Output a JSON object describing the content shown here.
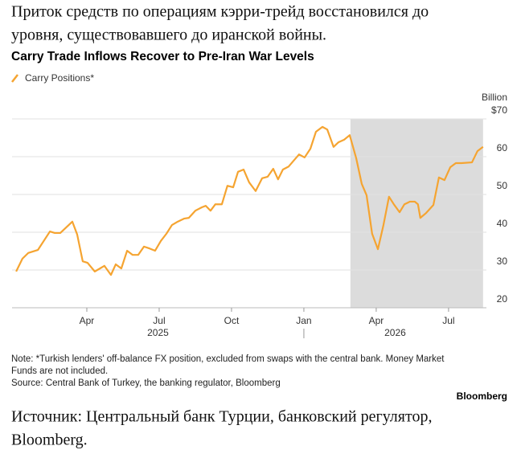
{
  "header": {
    "text_ru": [
      "Приток средств по операциям кэрри-трейд восстановился до",
      "уровня, существовавшего до иранской войны."
    ]
  },
  "chart_data": {
    "type": "line",
    "title": "Carry Trade Inflows Recover to Pre-Iran War Levels",
    "y_unit": "Billion",
    "x": [
      0.07,
      0.33,
      0.57,
      0.97,
      1.47,
      1.67,
      1.9,
      2.4,
      2.6,
      2.83,
      3.03,
      3.33,
      3.73,
      4.0,
      4.2,
      4.43,
      4.67,
      4.9,
      5.13,
      5.37,
      5.6,
      5.83,
      6.07,
      6.3,
      6.53,
      6.77,
      7.03,
      7.23,
      7.5,
      7.77,
      7.93,
      8.13,
      8.33,
      8.6,
      8.83,
      9.07,
      9.27,
      9.5,
      9.73,
      10.0,
      10.27,
      10.5,
      10.73,
      10.93,
      11.13,
      11.37,
      11.57,
      11.8,
      12.03,
      12.27,
      12.5,
      12.77,
      12.97,
      13.23,
      13.43,
      13.67,
      13.9,
      14.17,
      14.4,
      14.6,
      14.83,
      15.07,
      15.3,
      15.53,
      15.73,
      15.97,
      16.17,
      16.4,
      16.6,
      16.73,
      16.83,
      17.07,
      17.37,
      17.6,
      17.83,
      18.07,
      18.3,
      18.53,
      18.97,
      19.2,
      19.43
    ],
    "series": [
      {
        "name": "Carry Positions*",
        "color": "#f5a431",
        "values": [
          29.6,
          33,
          34.5,
          35.3,
          40.2,
          39.8,
          39.8,
          42.8,
          39.4,
          32.3,
          31.9,
          29.6,
          31.1,
          28.7,
          31.5,
          30.4,
          35.1,
          34,
          34,
          36.2,
          35.7,
          35.1,
          37.7,
          39.6,
          41.9,
          42.8,
          43.6,
          43.8,
          45.7,
          46.6,
          47,
          45.7,
          47.4,
          47.4,
          52.3,
          51.9,
          56,
          56.6,
          53.2,
          50.9,
          54.3,
          54.7,
          56.8,
          54,
          56.6,
          57.4,
          58.9,
          60.6,
          59.8,
          62.1,
          66.6,
          67.9,
          67.2,
          62.6,
          63.8,
          64.5,
          65.7,
          59.6,
          52.8,
          49.8,
          39.6,
          35.5,
          41.9,
          49.4,
          47.4,
          45.3,
          47.4,
          48.1,
          48.1,
          47.4,
          43.8,
          45.1,
          47.2,
          54.5,
          53.8,
          57.2,
          58.3,
          58.3,
          58.5,
          61.5,
          62.6
        ]
      }
    ],
    "xlim": [
      -0.1,
      19.57
    ],
    "xticks": [
      {
        "value": 3,
        "label": "Apr"
      },
      {
        "value": 6,
        "label": "Jul"
      },
      {
        "value": 9,
        "label": "Oct"
      },
      {
        "value": 12,
        "label": "Jan"
      },
      {
        "value": 15,
        "label": "Apr"
      },
      {
        "value": 18,
        "label": "Jul"
      }
    ],
    "years": [
      "2025",
      "2026"
    ],
    "year_separator": 12,
    "shaded_region": [
      13.93,
      19.43
    ],
    "ylim": [
      20,
      70
    ],
    "yticks": [
      20,
      30,
      40,
      50,
      60,
      {
        "value": 70,
        "label": "$70"
      }
    ],
    "grid": true,
    "note": [
      "Note: *Turkish lenders' off-balance FX position, excluded from swaps with the central bank. Money Market",
      "Funds are not included."
    ],
    "source": "Source: Central Bank of Turkey, the banking regulator, Bloomberg",
    "brand": "Bloomberg"
  },
  "footer": {
    "text_ru": [
      "Источник: Центральный банк Турции, банковский регулятор,",
      "Bloomberg."
    ]
  }
}
